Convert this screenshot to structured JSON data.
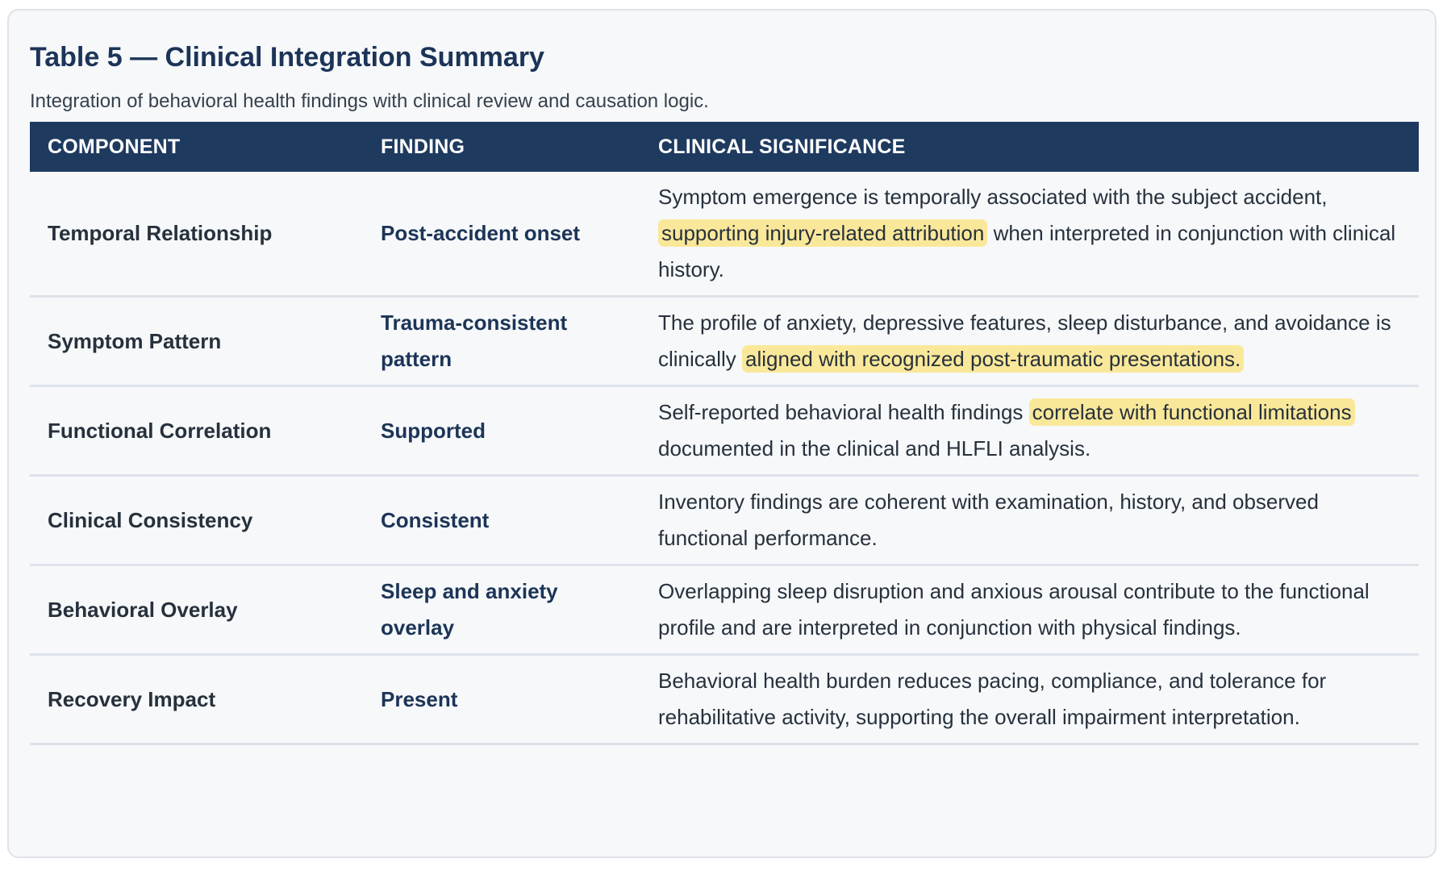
{
  "header": {
    "title": "Table 5 — Clinical Integration Summary",
    "subtitle": "Integration of behavioral health findings with clinical review and causation logic."
  },
  "table": {
    "columns": [
      "COMPONENT",
      "FINDING",
      "CLINICAL SIGNIFICANCE"
    ],
    "rows": [
      {
        "component": "Temporal Relationship",
        "finding": "Post-accident onset",
        "significance": [
          {
            "text": "Symptom emergence is temporally associated with the subject accident, ",
            "highlight": false
          },
          {
            "text": "supporting injury-related attribution",
            "highlight": true
          },
          {
            "text": " when interpreted in conjunction with clinical history.",
            "highlight": false
          }
        ]
      },
      {
        "component": "Symptom Pattern",
        "finding": "Trauma-consistent pattern",
        "significance": [
          {
            "text": "The profile of anxiety, depressive features, sleep disturbance, and avoidance is clinically ",
            "highlight": false
          },
          {
            "text": "aligned with recognized post-traumatic presentations.",
            "highlight": true
          }
        ]
      },
      {
        "component": "Functional Correlation",
        "finding": "Supported",
        "significance": [
          {
            "text": "Self-reported behavioral health findings ",
            "highlight": false
          },
          {
            "text": "correlate with functional limitations",
            "highlight": true
          },
          {
            "text": " documented in the clinical and HLFLI analysis.",
            "highlight": false
          }
        ]
      },
      {
        "component": "Clinical Consistency",
        "finding": "Consistent",
        "significance": [
          {
            "text": "Inventory findings are coherent with examination, history, and observed functional performance.",
            "highlight": false
          }
        ]
      },
      {
        "component": "Behavioral Overlay",
        "finding": "Sleep and anxiety overlay",
        "significance": [
          {
            "text": "Overlapping sleep disruption and anxious arousal contribute to the functional profile and are interpreted in conjunction with physical findings.",
            "highlight": false
          }
        ]
      },
      {
        "component": "Recovery Impact",
        "finding": "Present",
        "significance": [
          {
            "text": "Behavioral health burden reduces pacing, compliance, and tolerance for rehabilitative activity, supporting the overall impairment interpretation.",
            "highlight": false
          }
        ]
      }
    ]
  }
}
